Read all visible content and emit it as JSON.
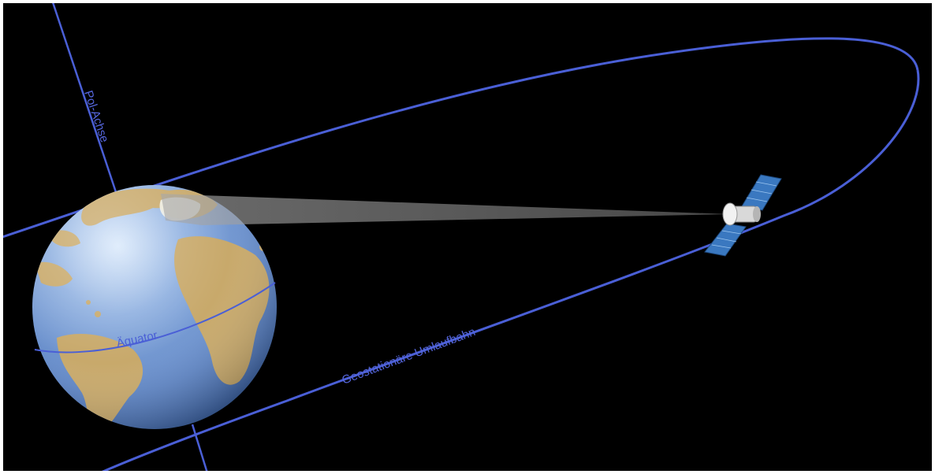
{
  "labels": {
    "pole_axis": "Pol-Achse",
    "equator": "Äquator",
    "orbit": "Geostationäre  Umlaufbahn"
  },
  "icons": {
    "earth": "earth-globe-icon",
    "satellite": "satellite-icon"
  },
  "colors": {
    "background": "#000000",
    "orbit_line": "#4a5fd6",
    "ocean": "#7a9fd8",
    "land": "#c8a96b",
    "solar_panel": "#3a78c0",
    "beam": "#9a9a9a"
  }
}
